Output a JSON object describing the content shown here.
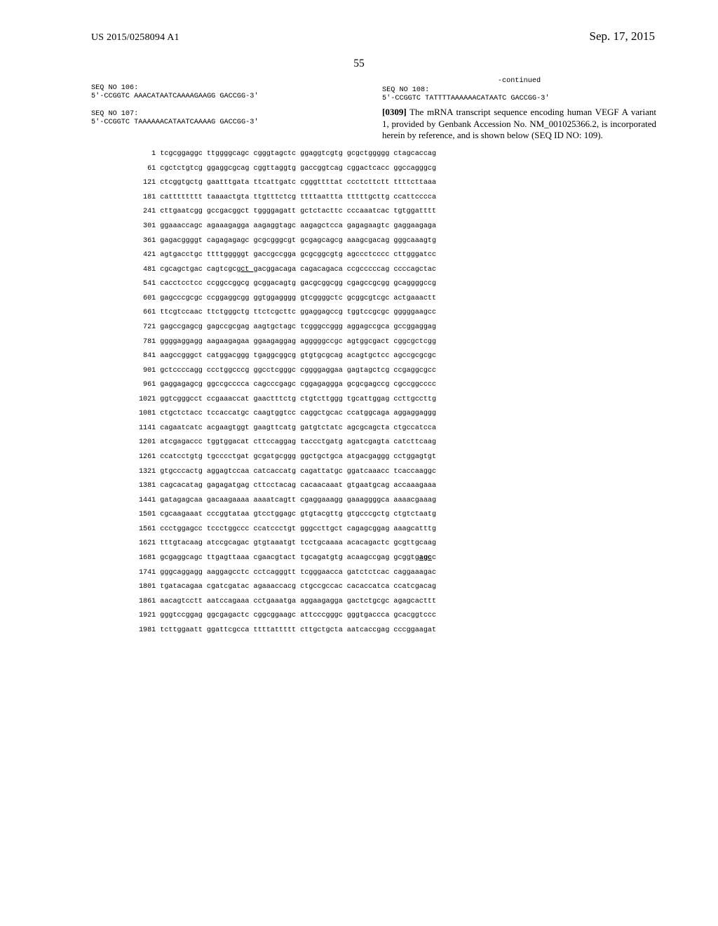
{
  "header": {
    "publication_number": "US 2015/0258094 A1",
    "publication_date": "Sep. 17, 2015"
  },
  "page_number": "55",
  "left_col": {
    "seq106": {
      "label": "SEQ NO 106:",
      "line": "5'-CCGGTC AAACATAATCAAAAGAAGG GACCGG-3'"
    },
    "seq107": {
      "label": "SEQ NO 107:",
      "line": "5'-CCGGTC TAAAAAACATAATCAAAAG GACCGG-3'"
    }
  },
  "right_col": {
    "continued": "-continued",
    "seq108": {
      "label": "SEQ NO 108:",
      "line": "5'-CCGGTC TATTTTAAAAAACATAATC GACCGG-3'"
    },
    "paragraph": {
      "num": "[0309]",
      "text": "The mRNA transcript sequence encoding human VEGF A variant 1, provided by Genbank Accession No. NM_001025366.2, is incorporated herein by reference, and is shown below (SEQ ID NO: 109)."
    }
  },
  "sequence": {
    "rows": [
      {
        "n": "1",
        "b": [
          "tcgcggaggc",
          "ttggggcagc",
          "cgggtagctc",
          "ggaggtcgtg",
          "gcgctggggg",
          "ctagcaccag"
        ]
      },
      {
        "n": "61",
        "b": [
          "cgctctgtcg",
          "ggaggcgcag",
          "cggttaggtg",
          "gaccggtcag",
          "cggactcacc",
          "ggccagggcg"
        ]
      },
      {
        "n": "121",
        "b": [
          "ctcggtgctg",
          "gaatttgata",
          "ttcattgatc",
          "cgggttttat",
          "ccctcttctt",
          "ttttcttaaa"
        ]
      },
      {
        "n": "181",
        "b": [
          "catttttttt",
          "taaaactgta",
          "ttgtttctcg",
          "ttttaattta",
          "tttttgcttg",
          "ccattcccca"
        ]
      },
      {
        "n": "241",
        "b": [
          "cttgaatcgg",
          "gccgacggct",
          "tggggagatt",
          "gctctacttc",
          "cccaaatcac",
          "tgtggatttt"
        ]
      },
      {
        "n": "301",
        "b": [
          "ggaaaccagc",
          "agaaagagga",
          "aagaggtagc",
          "aagagctcca",
          "gagagaagtc",
          "gaggaagaga"
        ]
      },
      {
        "n": "361",
        "b": [
          "gagacggggt",
          "cagagagagc",
          "gcgcgggcgt",
          "gcgagcagcg",
          "aaagcgacag",
          "gggcaaagtg"
        ]
      },
      {
        "n": "421",
        "b": [
          "agtgacctgc",
          "ttttgggggt",
          "gaccgccgga",
          "gcgcggcgtg",
          "agccctcccc",
          "cttgggatcc"
        ]
      },
      {
        "n": "481",
        "b": [
          "cgcagctgac",
          "cagtcgcg",
          "acggacaga",
          "cagacagaca",
          "ccgcccccag",
          "ccccagctac"
        ],
        "underline_at": 1,
        "underline_text": "ct g"
      },
      {
        "n": "541",
        "b": [
          "cacctcctcc",
          "ccggccggcg",
          "gcggacagtg",
          "gacgcggcgg",
          "cgagccgcgg",
          "gcaggggccg"
        ]
      },
      {
        "n": "601",
        "b": [
          "gagcccgcgc",
          "ccggaggcgg",
          "ggtggagggg",
          "gtcggggctc",
          "gcggcgtcgc",
          "actgaaactt"
        ]
      },
      {
        "n": "661",
        "b": [
          "ttcgtccaac",
          "ttctgggctg",
          "ttctcgcttc",
          "ggaggagccg",
          "tggtccgcgc",
          "gggggaagcc"
        ]
      },
      {
        "n": "721",
        "b": [
          "gagccgagcg",
          "gagccgcgag",
          "aagtgctagc",
          "tcgggccggg",
          "aggagccgca",
          "gccggaggag"
        ]
      },
      {
        "n": "781",
        "b": [
          "ggggaggagg",
          "aagaagagaa",
          "ggaagaggag",
          "agggggccgc",
          "agtggcgact",
          "cggcgctcgg"
        ]
      },
      {
        "n": "841",
        "b": [
          "aagccgggct",
          "catggacggg",
          "tgaggcggcg",
          "gtgtgcgcag",
          "acagtgctcc",
          "agccgcgcgc"
        ]
      },
      {
        "n": "901",
        "b": [
          "gctccccagg",
          "ccctggcccg",
          "ggcctcgggc",
          "cggggaggaa",
          "gagtagctcg",
          "ccgaggcgcc"
        ]
      },
      {
        "n": "961",
        "b": [
          "gaggagagcg",
          "ggccgcccca",
          "cagcccgagc",
          "cggagaggga",
          "gcgcgagccg",
          "cgccggcccc"
        ]
      },
      {
        "n": "1021",
        "b": [
          "ggtcgggcct",
          "ccgaaaccat",
          "gaactttctg",
          "ctgtcttggg",
          "tgcattggag",
          "ccttgccttg"
        ]
      },
      {
        "n": "1081",
        "b": [
          "ctgctctacc",
          "tccaccatgc",
          "caagtggtcc",
          "caggctgcac",
          "ccatggcaga",
          "aggaggaggg"
        ]
      },
      {
        "n": "1141",
        "b": [
          "cagaatcatc",
          "acgaagtggt",
          "gaagttcatg",
          "gatgtctatc",
          "agcgcagcta",
          "ctgccatcca"
        ]
      },
      {
        "n": "1201",
        "b": [
          "atcgagaccc",
          "tggtggacat",
          "cttccaggag",
          "taccctgatg",
          "agatcgagta",
          "catcttcaag"
        ]
      },
      {
        "n": "1261",
        "b": [
          "ccatcctgtg",
          "tgcccctgat",
          "gcgatgcggg",
          "ggctgctgca",
          "atgacgaggg",
          "cctggagtgt"
        ]
      },
      {
        "n": "1321",
        "b": [
          "gtgcccactg",
          "aggagtccaa",
          "catcaccatg",
          "cagattatgc",
          "ggatcaaacc",
          "tcaccaaggc"
        ]
      },
      {
        "n": "1381",
        "b": [
          "cagcacatag",
          "gagagatgag",
          "cttcctacag",
          "cacaacaaat",
          "gtgaatgcag",
          "accaaagaaa"
        ]
      },
      {
        "n": "1441",
        "b": [
          "gatagagcaa",
          "gacaagaaaa",
          "aaaatcagtt",
          "cgaggaaagg",
          "gaaaggggca",
          "aaaacgaaag"
        ]
      },
      {
        "n": "1501",
        "b": [
          "cgcaagaaat",
          "cccggtataa",
          "gtcctggagc",
          "gtgtacgttg",
          "gtgcccgctg",
          "ctgtctaatg"
        ]
      },
      {
        "n": "1561",
        "b": [
          "ccctggagcc",
          "tccctggccc",
          "ccatccctgt",
          "gggccttgct",
          "cagagcggag",
          "aaagcatttg"
        ]
      },
      {
        "n": "1621",
        "b": [
          "tttgtacaag",
          "atccgcagac",
          "gtgtaaatgt",
          "tcctgcaaaa",
          "acacagactc",
          "gcgttgcaag"
        ]
      },
      {
        "n": "1681",
        "b": [
          "gcgaggcagc",
          "ttgagttaaa",
          "cgaacgtact",
          "tgcagatgtg",
          "acaagccgag",
          "gcggtg"
        ],
        "bold_underline_tail": "agc",
        "tail_c": "c"
      },
      {
        "n": "1741",
        "b": [
          "gggcaggagg",
          "aaggagcctc",
          "cctcagggtt",
          "tcgggaacca",
          "gatctctcac",
          "caggaaagac"
        ]
      },
      {
        "n": "1801",
        "b": [
          "tgatacagaa",
          "cgatcgatac",
          "agaaaccacg",
          "ctgccgccac",
          "cacaccatca",
          "ccatcgacag"
        ]
      },
      {
        "n": "1861",
        "b": [
          "aacagtcctt",
          "aatccagaaa",
          "cctgaaatga",
          "aggaagagga",
          "gactctgcgc",
          "agagcacttt"
        ]
      },
      {
        "n": "1921",
        "b": [
          "gggtccggag",
          "ggcgagactc",
          "cggcggaagc",
          "attcccgggc",
          "gggtgaccca",
          "gcacggtccc"
        ]
      },
      {
        "n": "1981",
        "b": [
          "tcttggaatt",
          "ggattcgcca",
          "ttttattttt",
          "cttgctgcta",
          "aatcaccgag",
          "cccggaagat"
        ]
      }
    ]
  },
  "style": {
    "background": "#ffffff",
    "text_color": "#000000",
    "mono_font": "Courier New",
    "serif_font": "Times New Roman",
    "header_fontsize": 14,
    "date_fontsize": 17,
    "pagenum_fontsize": 15.5,
    "seqblock_fontsize": 10.2,
    "para_fontsize": 13,
    "listing_fontsize": 10.1
  }
}
